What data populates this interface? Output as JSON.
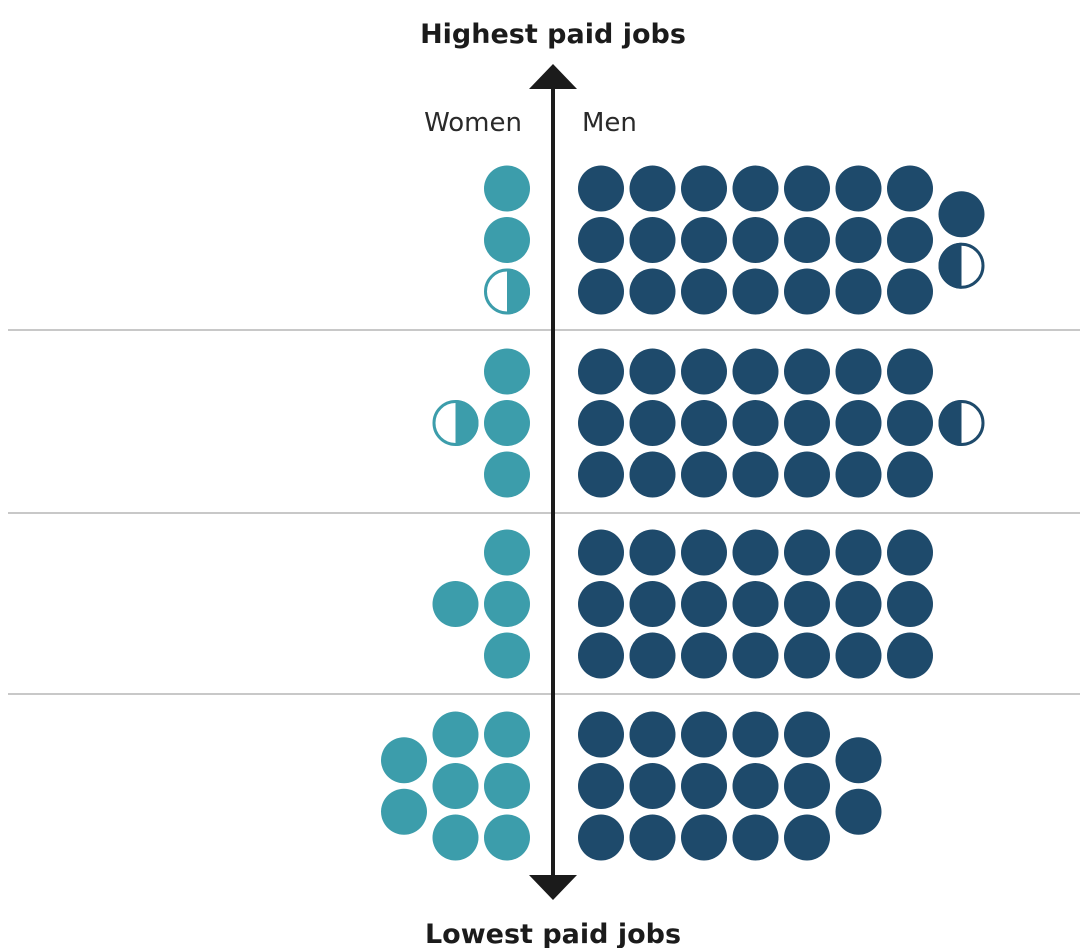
{
  "chart_data": {
    "type": "unit-dot-plot",
    "title_top": "Highest paid jobs",
    "title_bottom": "Lowest paid jobs",
    "left_label": "Women",
    "right_label": "Men",
    "colors": {
      "women": "#3c9dab",
      "men": "#1e4a6b",
      "axis": "#1b1b1b",
      "divider": "#c8c8c8"
    },
    "rows": [
      {
        "quartile": "top",
        "women_dots": 2.5,
        "men_dots": 22.5
      },
      {
        "quartile": "upper-middle",
        "women_dots": 3.5,
        "men_dots": 21.5
      },
      {
        "quartile": "lower-middle",
        "women_dots": 4,
        "men_dots": 21
      },
      {
        "quartile": "lowest",
        "women_dots": 8,
        "men_dots": 17
      }
    ]
  }
}
